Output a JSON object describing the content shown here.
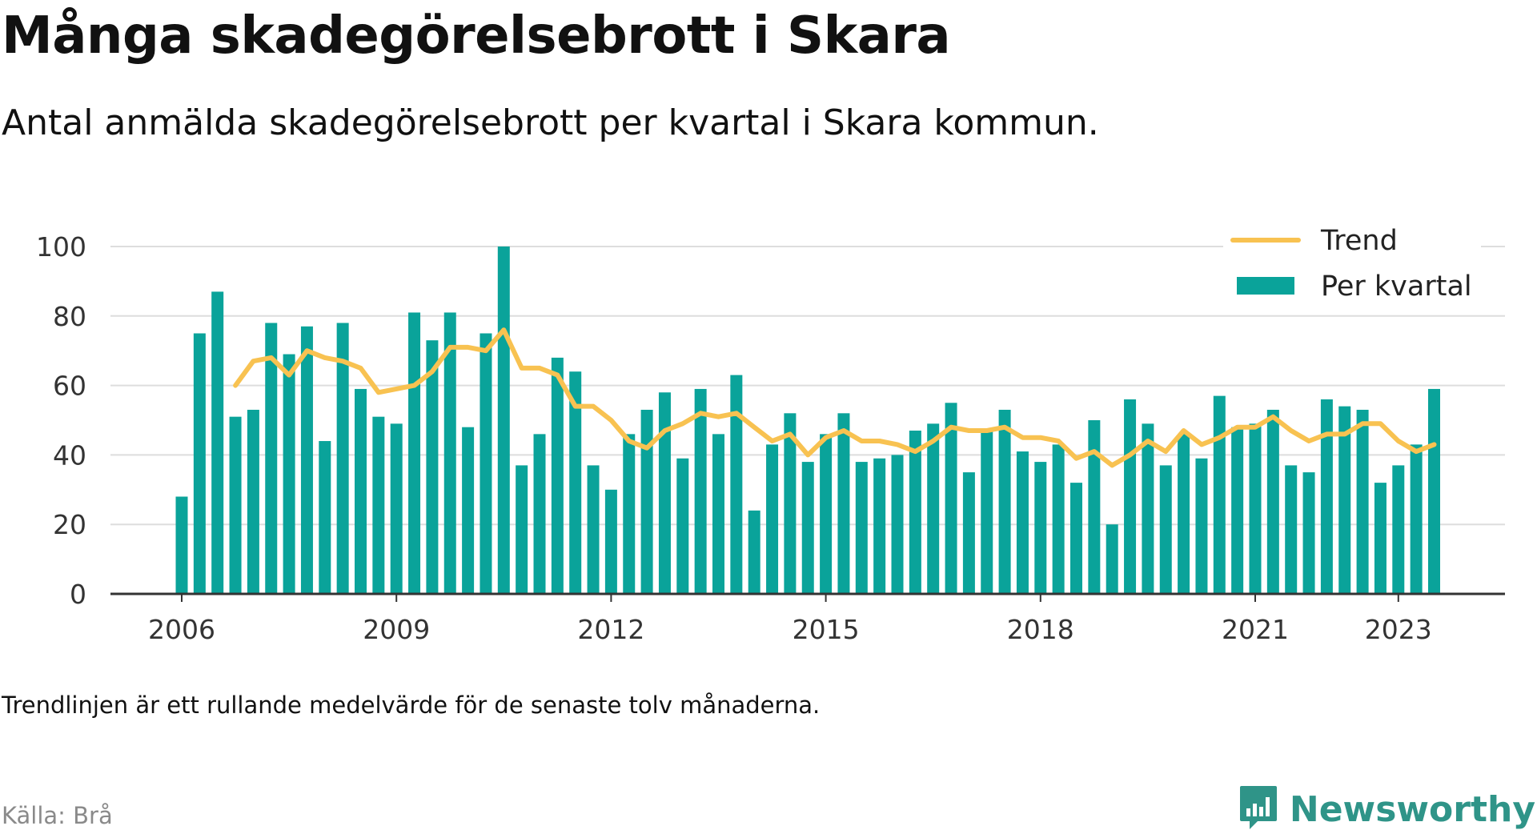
{
  "title": "Många skadegörelsebrott i Skara",
  "subtitle": "Antal anmälda skadegörelsebrott per kvartal i Skara kommun.",
  "note": "Trendlinjen är ett rullande medelvärde för de senaste tolv månaderna.",
  "source": "Källa: Brå",
  "brand": {
    "name": "Newsworthy",
    "icon": "newsworthy-logo-icon",
    "color": "#2f9488"
  },
  "colors": {
    "bar": "#0aa39a",
    "trend": "#f8c251",
    "grid": "#dddddd",
    "axis": "#333333"
  },
  "chart_data": {
    "type": "bar",
    "x_start": "2006 Q1",
    "ylim": [
      0,
      100
    ],
    "yticks": [
      0,
      20,
      40,
      60,
      80,
      100
    ],
    "xticks": [
      {
        "label": "2006",
        "year": 2006
      },
      {
        "label": "2009",
        "year": 2009
      },
      {
        "label": "2012",
        "year": 2012
      },
      {
        "label": "2015",
        "year": 2015
      },
      {
        "label": "2018",
        "year": 2018
      },
      {
        "label": "2021",
        "year": 2021
      },
      {
        "label": "2023",
        "year": 2023
      }
    ],
    "grid": true,
    "legend_position": "top-right",
    "series": [
      {
        "name": "Per kvartal",
        "type": "bar",
        "color": "#0aa39a",
        "values": [
          28,
          75,
          87,
          51,
          53,
          78,
          69,
          77,
          44,
          78,
          59,
          51,
          49,
          81,
          73,
          81,
          48,
          75,
          100,
          37,
          46,
          68,
          64,
          37,
          30,
          46,
          53,
          58,
          39,
          59,
          46,
          63,
          24,
          43,
          52,
          38,
          46,
          52,
          38,
          39,
          40,
          47,
          49,
          55,
          35,
          47,
          53,
          41,
          38,
          43,
          32,
          50,
          20,
          56,
          49,
          37,
          46,
          39,
          57,
          48,
          49,
          53,
          37,
          35,
          56,
          54,
          53,
          32,
          37,
          43,
          59
        ]
      },
      {
        "name": "Trend",
        "type": "line",
        "color": "#f8c251",
        "values": [
          null,
          null,
          null,
          60,
          67,
          68,
          63,
          70,
          68,
          67,
          65,
          58,
          59,
          60,
          64,
          71,
          71,
          70,
          76,
          65,
          65,
          63,
          54,
          54,
          50,
          44,
          42,
          47,
          49,
          52,
          51,
          52,
          48,
          44,
          46,
          40,
          45,
          47,
          44,
          44,
          43,
          41,
          44,
          48,
          47,
          47,
          48,
          45,
          45,
          44,
          39,
          41,
          37,
          40,
          44,
          41,
          47,
          43,
          45,
          48,
          48,
          51,
          47,
          44,
          46,
          46,
          49,
          49,
          44,
          41,
          43
        ]
      }
    ]
  }
}
